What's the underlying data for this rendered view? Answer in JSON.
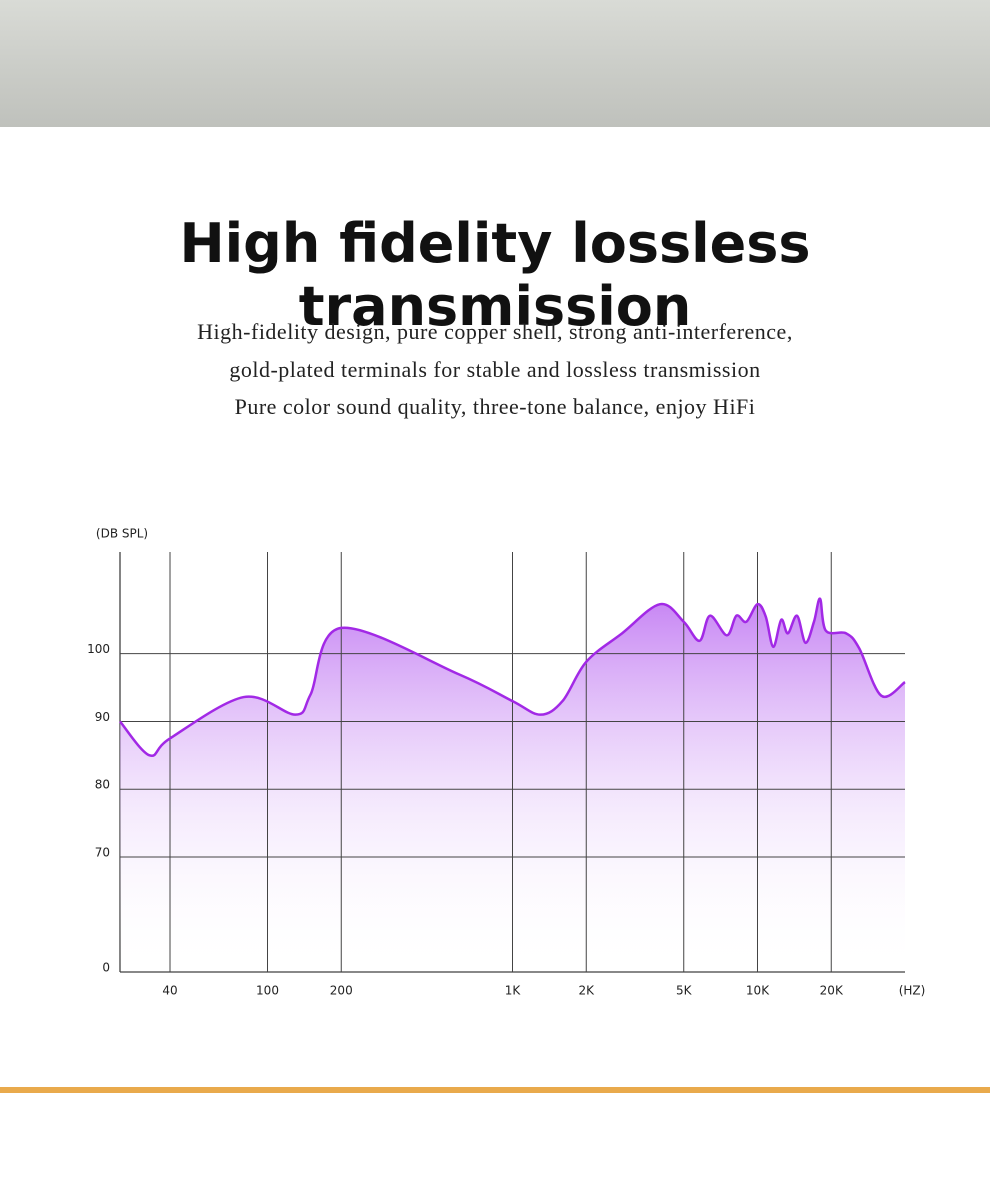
{
  "header": {
    "title": "High fidelity lossless transmission",
    "lines": [
      "High-fidelity design, pure copper shell, strong anti-interference,",
      "gold-plated terminals for stable and lossless transmission",
      "Pure color sound quality, three-tone balance, enjoy HiFi"
    ]
  },
  "chart_data": {
    "type": "line",
    "y_label": "(DB SPL)",
    "x_label": "(HZ)",
    "log_x": true,
    "grid": true,
    "area": true,
    "x": [
      25,
      33,
      40,
      80,
      130,
      150,
      200,
      600,
      1000,
      1300,
      1600,
      2000,
      2800,
      4000,
      5000,
      5800,
      6400,
      7500,
      8200,
      9000,
      10000,
      10800,
      11600,
      12500,
      13300,
      14500,
      15700,
      17000,
      18000,
      19000,
      23000,
      26000,
      32000,
      40000
    ],
    "series": [
      {
        "color": "#a229e6",
        "values": [
          90,
          85,
          87.5,
          93.6,
          91,
          94,
          103.8,
          97,
          93,
          91,
          93,
          98.8,
          103,
          107.3,
          104.7,
          101.9,
          105.6,
          102.7,
          105.6,
          104.7,
          107.3,
          105.5,
          101,
          105,
          103,
          105.6,
          101.6,
          104.7,
          108.1,
          103.4,
          103,
          100.8,
          93.8,
          95.8
        ]
      }
    ],
    "xlim": [
      25,
      40000
    ],
    "xticks": [
      40,
      100,
      200,
      {
        "value": 1000,
        "label": "1K"
      },
      {
        "value": 2000,
        "label": "2K"
      },
      {
        "value": 5000,
        "label": "5K"
      },
      {
        "value": 10000,
        "label": "10K"
      },
      {
        "value": 20000,
        "label": "20K"
      }
    ],
    "ylim": [
      0,
      115
    ],
    "yticks": [
      0,
      70,
      80,
      90,
      100
    ]
  }
}
